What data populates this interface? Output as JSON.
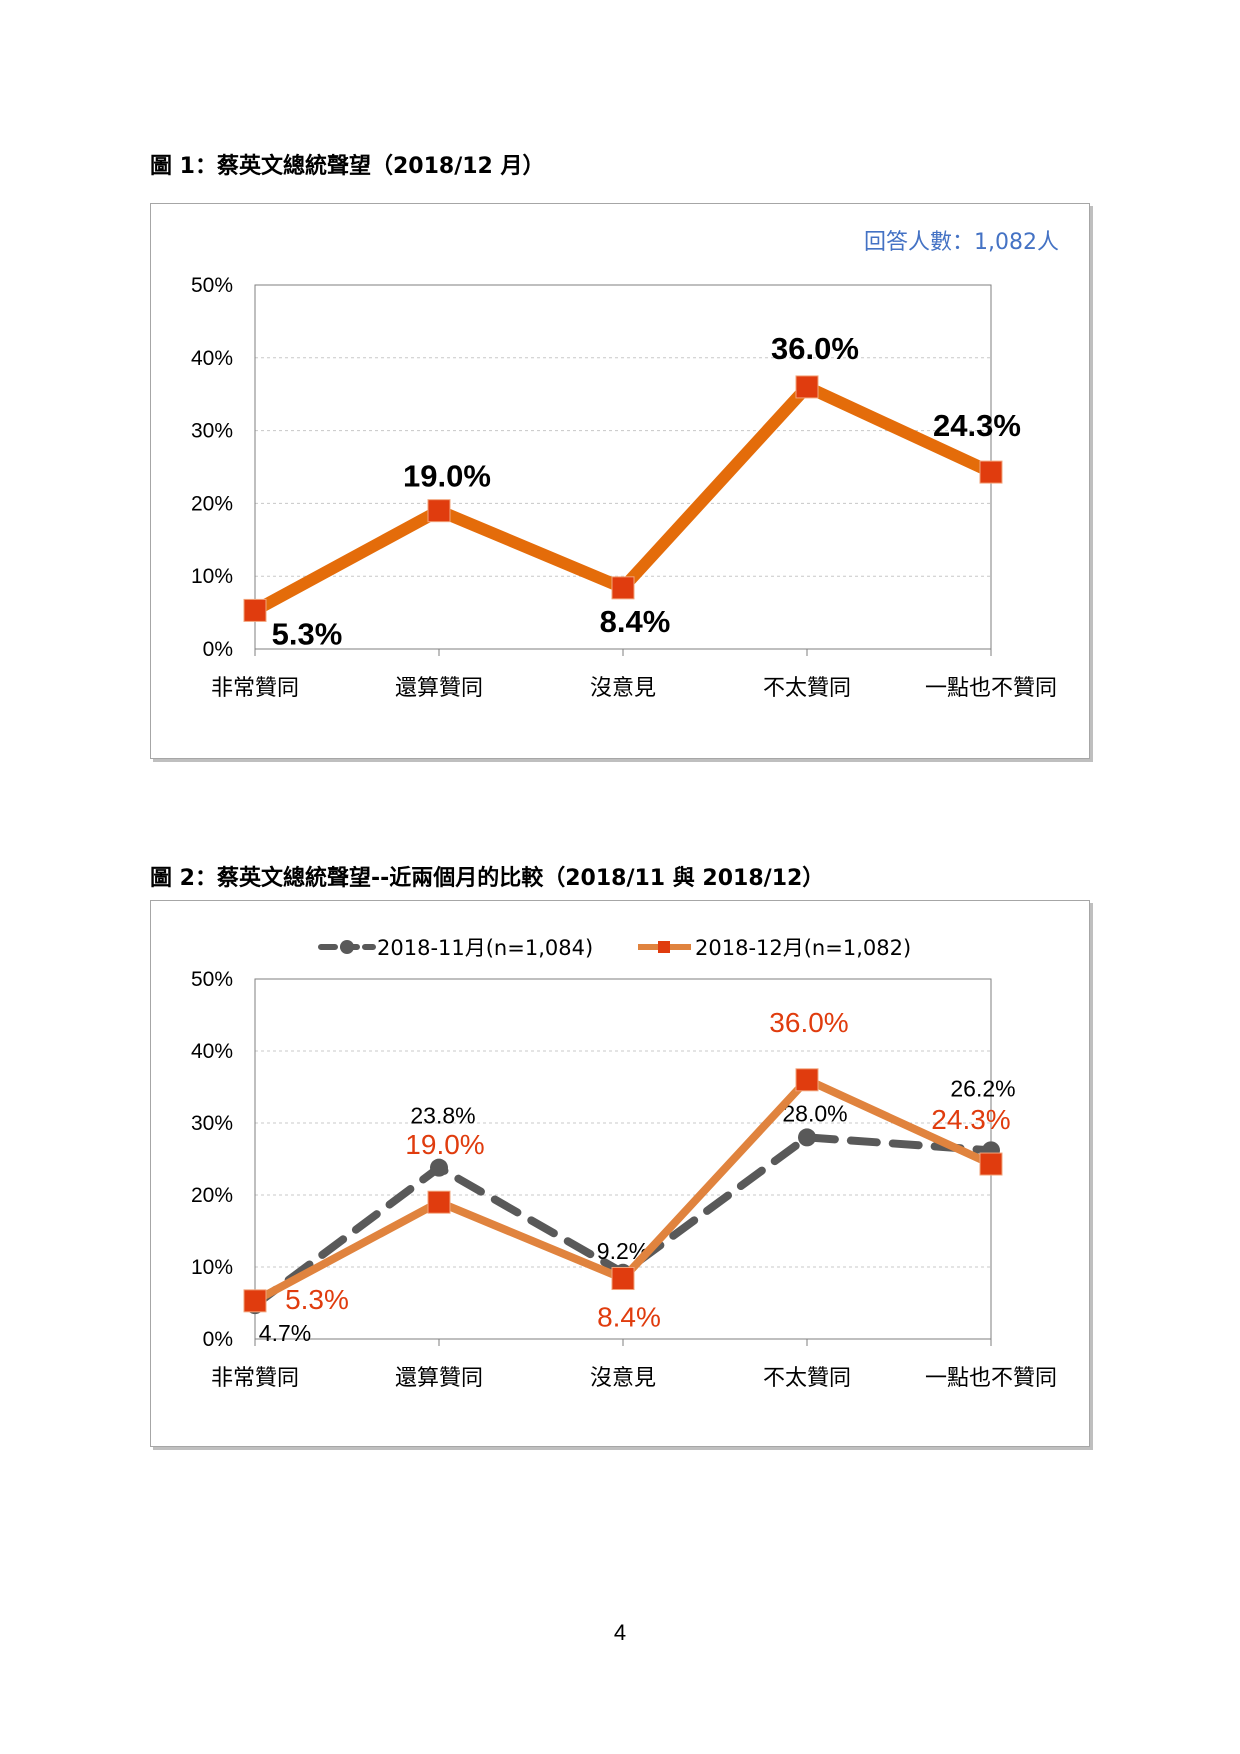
{
  "figures": [
    {
      "caption": "圖 1：蔡英文總統聲望（2018/12 月）",
      "note": "回答人數：1,082人"
    },
    {
      "caption": "圖 2：蔡英文總統聲望--近兩個月的比較（2018/11 與 2018/12）"
    }
  ],
  "page_number": "4",
  "chart_data": [
    {
      "type": "line",
      "categories": [
        "非常贊同",
        "還算贊同",
        "沒意見",
        "不太贊同",
        "一點也不贊同"
      ],
      "series": [
        {
          "values": [
            5.3,
            19.0,
            8.4,
            36.0,
            24.3
          ],
          "labels": [
            "5.3%",
            "19.0%",
            "8.4%",
            "36.0%",
            "24.3%"
          ],
          "color": "#E46C0A",
          "marker_color": "#E03C0E"
        }
      ],
      "y_ticks": [
        "0%",
        "10%",
        "20%",
        "30%",
        "40%",
        "50%"
      ],
      "ylim": [
        0,
        50
      ],
      "grid": true,
      "legend": "none"
    },
    {
      "type": "line",
      "categories": [
        "非常贊同",
        "還算贊同",
        "沒意見",
        "不太贊同",
        "一點也不贊同"
      ],
      "series": [
        {
          "name": "2018-11月(n=1,084)",
          "values": [
            4.7,
            23.8,
            9.2,
            28.0,
            26.2
          ],
          "labels": [
            "4.7%",
            "23.8%",
            "9.2%",
            "28.0%",
            "26.2%"
          ],
          "color": "#595959",
          "style": "dashed",
          "marker": "circle"
        },
        {
          "name": "2018-12月(n=1,082)",
          "values": [
            5.3,
            19.0,
            8.4,
            36.0,
            24.3
          ],
          "labels": [
            "5.3%",
            "19.0%",
            "8.4%",
            "36.0%",
            "24.3%"
          ],
          "color": "#E0833E",
          "marker_color": "#E03C0E",
          "label_color": "#E03C0E",
          "style": "solid",
          "marker": "square"
        }
      ],
      "y_ticks": [
        "0%",
        "10%",
        "20%",
        "30%",
        "40%",
        "50%"
      ],
      "ylim": [
        0,
        50
      ],
      "grid": true,
      "legend": "top"
    }
  ]
}
